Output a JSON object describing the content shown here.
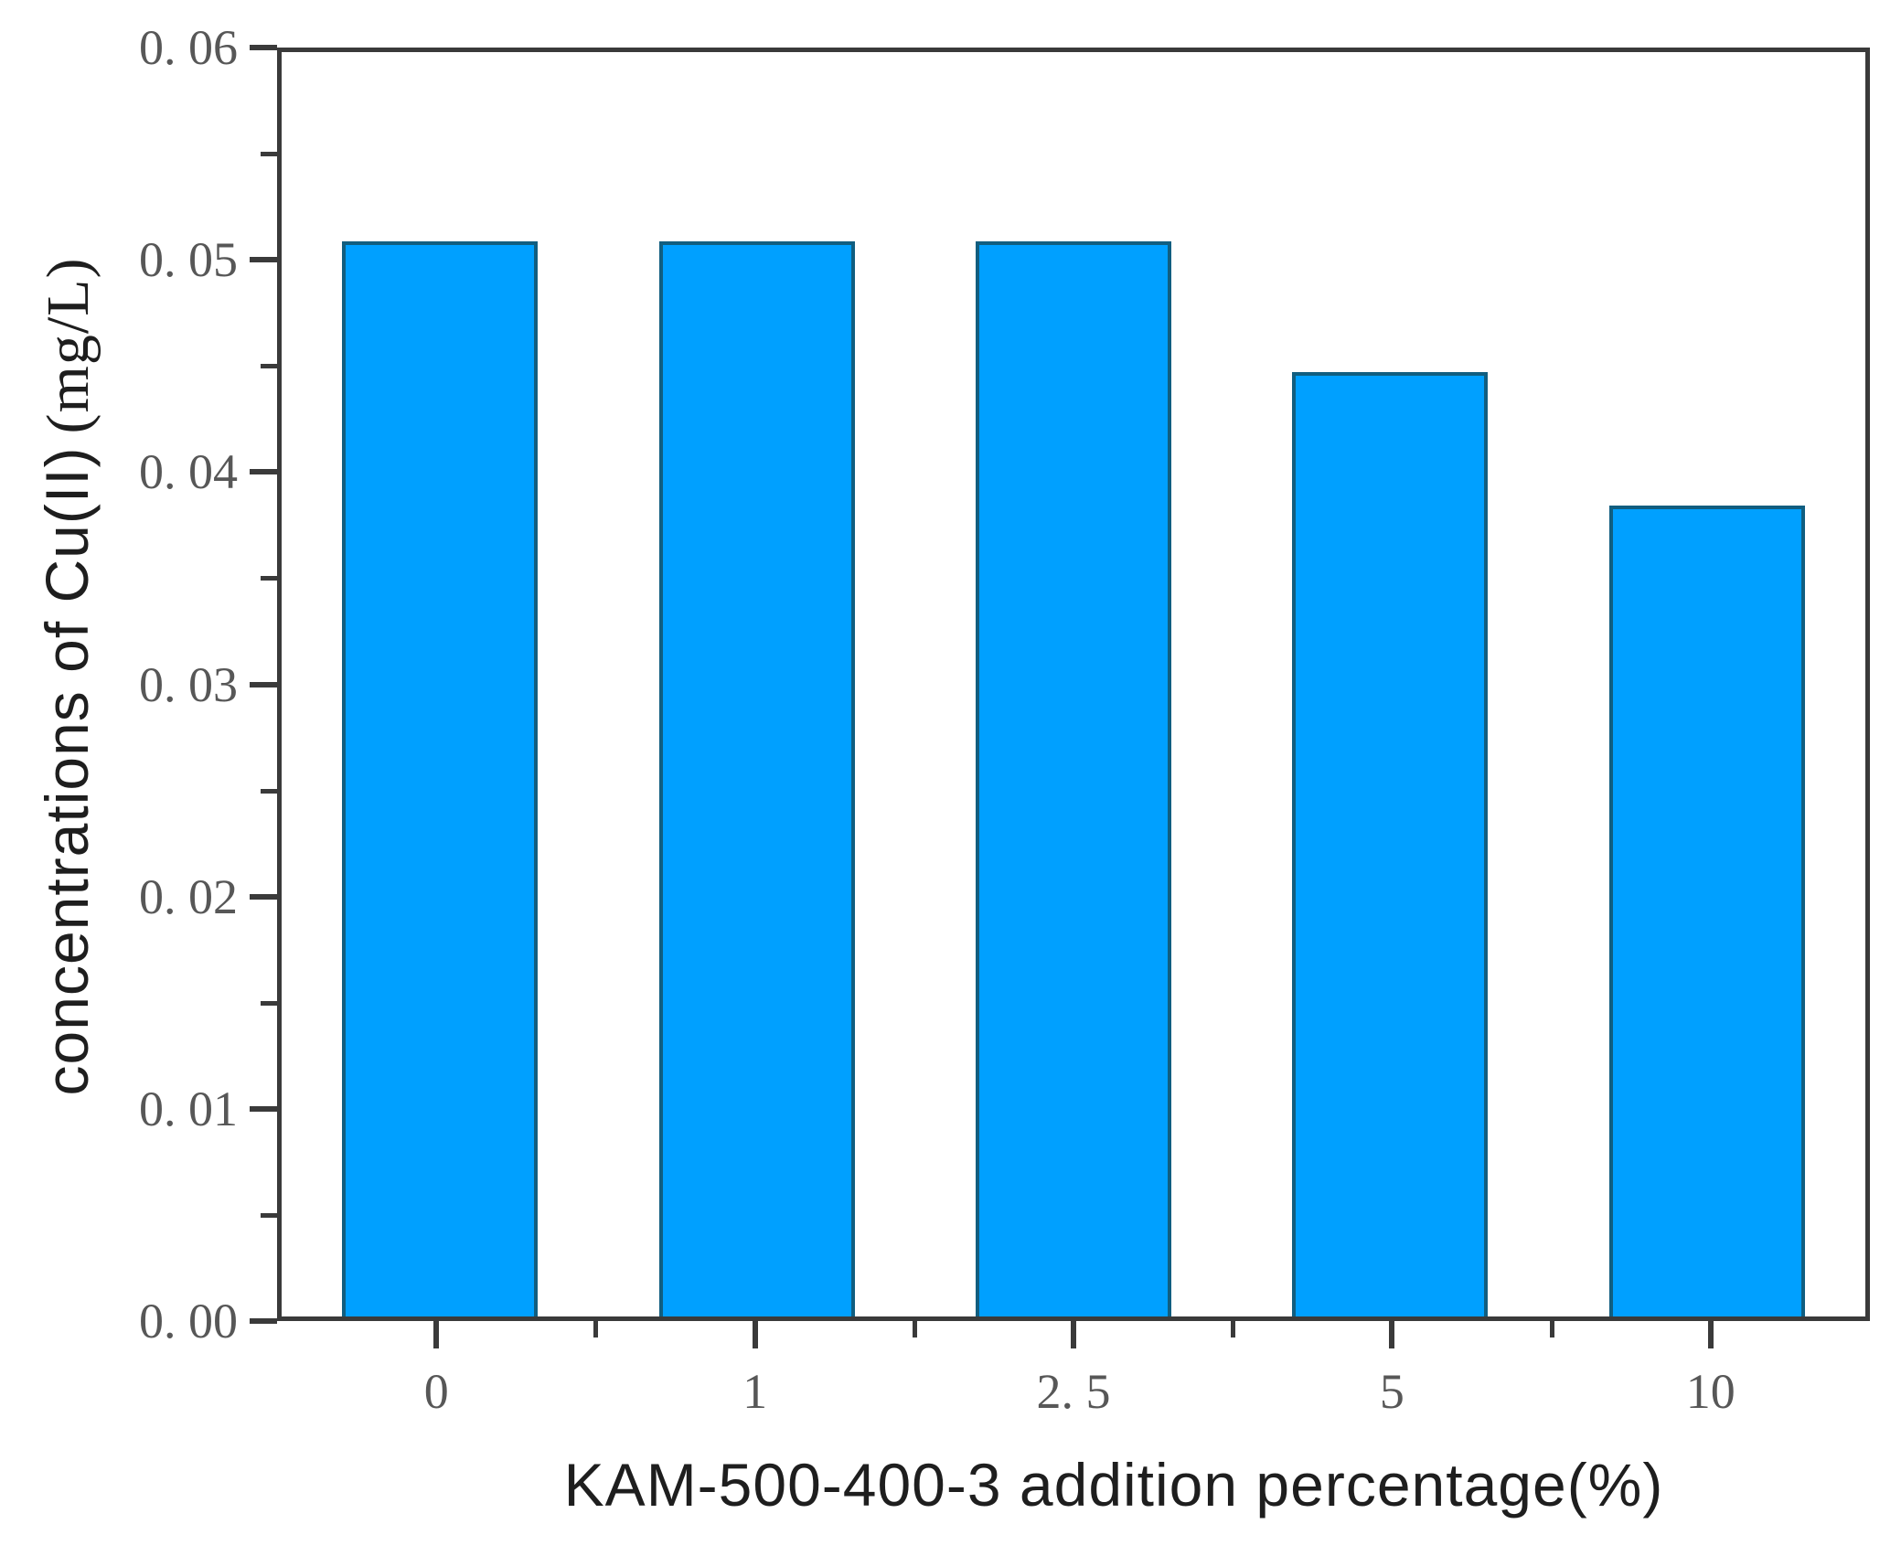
{
  "chart_data": {
    "type": "bar",
    "title": "",
    "categories": [
      "0",
      "1",
      "2.5",
      "5",
      "10"
    ],
    "values": [
      0.051,
      0.051,
      0.051,
      0.0448,
      0.0385
    ],
    "xlabel": "KAM-500-400-3 addition percentage(%)",
    "ylabel": "concentrations of Cu(II) (mg/L)",
    "ylim": [
      0,
      0.06
    ],
    "y_major_tick_step": 0.01,
    "y_minor_tick_step": 0.005,
    "grid": "off",
    "legend": "none",
    "colors": {
      "bar_fill": "#00A0FF",
      "bar_border": "#115E80",
      "axis": "#3A3A3A",
      "tick_label": "#575757",
      "axis_title": "#1E1E1E"
    }
  },
  "y_axis": {
    "title_main": "concentrations of Cu(II)",
    "title_unit": "(mg/L)",
    "tick_labels": [
      "0. 06",
      "0. 05",
      "0. 04",
      "0. 03",
      "0. 02",
      "0. 01",
      "0. 00"
    ],
    "tick_values": [
      0.06,
      0.05,
      0.04,
      0.03,
      0.02,
      0.01,
      0.0
    ]
  },
  "x_axis": {
    "title": "KAM-500-400-3 addition percentage(%)",
    "tick_labels": [
      "0",
      "1",
      "2. 5",
      "5",
      "10"
    ]
  }
}
